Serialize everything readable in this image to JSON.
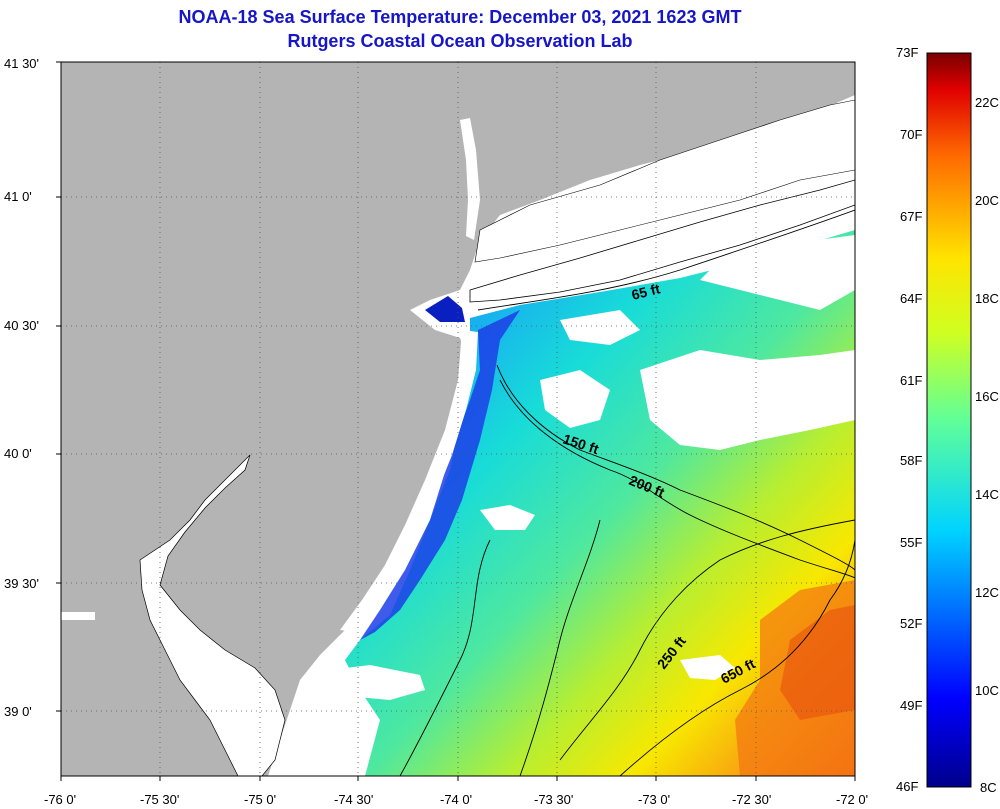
{
  "title_line1": "NOAA-18 Sea Surface Temperature:  December 03, 2021 1623 GMT",
  "title_line2": "Rutgers Coastal Ocean Observation Lab",
  "lat_labels": [
    "41 30'",
    "41 0'",
    "40 30'",
    "40 0'",
    "39 30'",
    "39 0'"
  ],
  "lon_labels": [
    "-76 0'",
    "-75 30'",
    "-75 0'",
    "-74 30'",
    "-74 0'",
    "-73 30'",
    "-73 0'",
    "-72 30'",
    "-72 0'"
  ],
  "contour_labels": [
    "65 ft",
    "150 ft",
    "200 ft",
    "250 ft",
    "650 ft"
  ],
  "colorbar": {
    "fahrenheit_labels": [
      "73F",
      "70F",
      "67F",
      "64F",
      "61F",
      "58F",
      "55F",
      "52F",
      "49F",
      "46F"
    ],
    "celsius_labels": [
      "22C",
      "20C",
      "18C",
      "16C",
      "14C",
      "12C",
      "10C",
      "8C"
    ],
    "min_f": 46,
    "max_f": 73
  },
  "colors": {
    "title": "#1616c8",
    "land": "#b4b4b4",
    "cloud": "#ffffff",
    "cold": "#00008c",
    "warm": "#8c0000"
  }
}
